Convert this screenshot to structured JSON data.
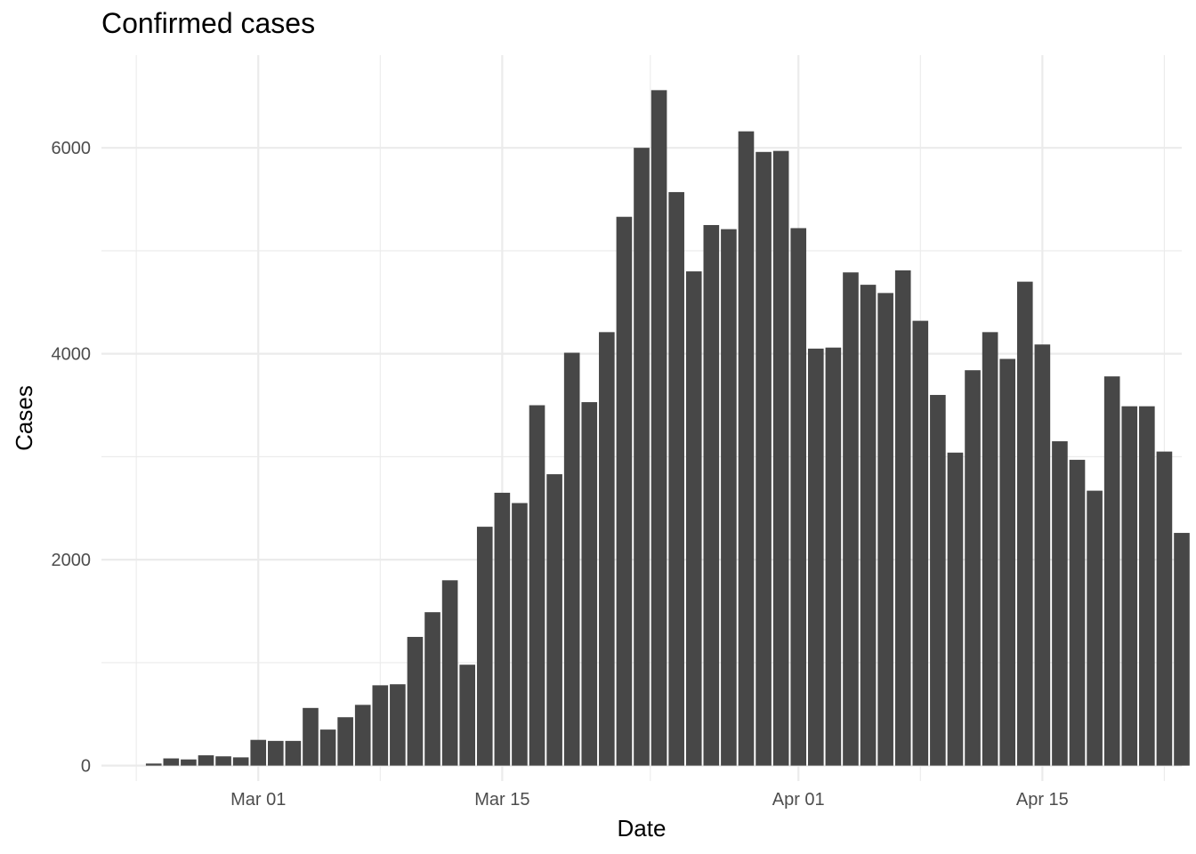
{
  "chart_data": {
    "type": "bar",
    "title": "Confirmed cases",
    "xlabel": "Date",
    "ylabel": "Cases",
    "ylim": [
      -150,
      6900
    ],
    "yticks": [
      0,
      2000,
      4000,
      6000
    ],
    "ytick_labels": [
      "0",
      "2000",
      "4000",
      "6000"
    ],
    "xticks": [
      "2020-03-01",
      "2020-03-15",
      "2020-04-01",
      "2020-04-15"
    ],
    "xtick_labels": [
      "Mar 01",
      "Mar 15",
      "Apr 01",
      "Apr 15"
    ],
    "xlim": [
      "2020-02-21",
      "2020-04-23"
    ],
    "grid": true,
    "bar_color": "#474747",
    "grid_color": "#ebebeb",
    "categories": [
      "2020-02-24",
      "2020-02-25",
      "2020-02-26",
      "2020-02-27",
      "2020-02-28",
      "2020-02-29",
      "2020-03-01",
      "2020-03-02",
      "2020-03-03",
      "2020-03-04",
      "2020-03-05",
      "2020-03-06",
      "2020-03-07",
      "2020-03-08",
      "2020-03-09",
      "2020-03-10",
      "2020-03-11",
      "2020-03-12",
      "2020-03-13",
      "2020-03-14",
      "2020-03-15",
      "2020-03-16",
      "2020-03-17",
      "2020-03-18",
      "2020-03-19",
      "2020-03-20",
      "2020-03-21",
      "2020-03-22",
      "2020-03-23",
      "2020-03-24",
      "2020-03-25",
      "2020-03-26",
      "2020-03-27",
      "2020-03-28",
      "2020-03-29",
      "2020-03-30",
      "2020-03-31",
      "2020-04-01",
      "2020-04-02",
      "2020-04-03",
      "2020-04-04",
      "2020-04-05",
      "2020-04-06",
      "2020-04-07",
      "2020-04-08",
      "2020-04-09",
      "2020-04-10",
      "2020-04-11",
      "2020-04-12",
      "2020-04-13",
      "2020-04-14",
      "2020-04-15",
      "2020-04-16",
      "2020-04-17",
      "2020-04-18",
      "2020-04-19",
      "2020-04-20",
      "2020-04-21",
      "2020-04-22"
    ],
    "values": [
      20,
      70,
      60,
      100,
      90,
      80,
      250,
      240,
      240,
      560,
      350,
      470,
      590,
      780,
      790,
      1250,
      1490,
      1800,
      980,
      2320,
      2650,
      2550,
      3500,
      2830,
      4010,
      3530,
      4210,
      5330,
      6000,
      6560,
      5570,
      4800,
      5250,
      5210,
      6160,
      5960,
      5970,
      5220,
      4050,
      4060,
      4790,
      4670,
      4590,
      4810,
      4320,
      3600,
      3040,
      3840,
      4210,
      3950,
      4700,
      4090,
      3150,
      2970,
      2670,
      3780,
      3490,
      3490,
      3050
    ],
    "extra_last": {
      "date": "2020-04-22",
      "value": 2260
    }
  }
}
